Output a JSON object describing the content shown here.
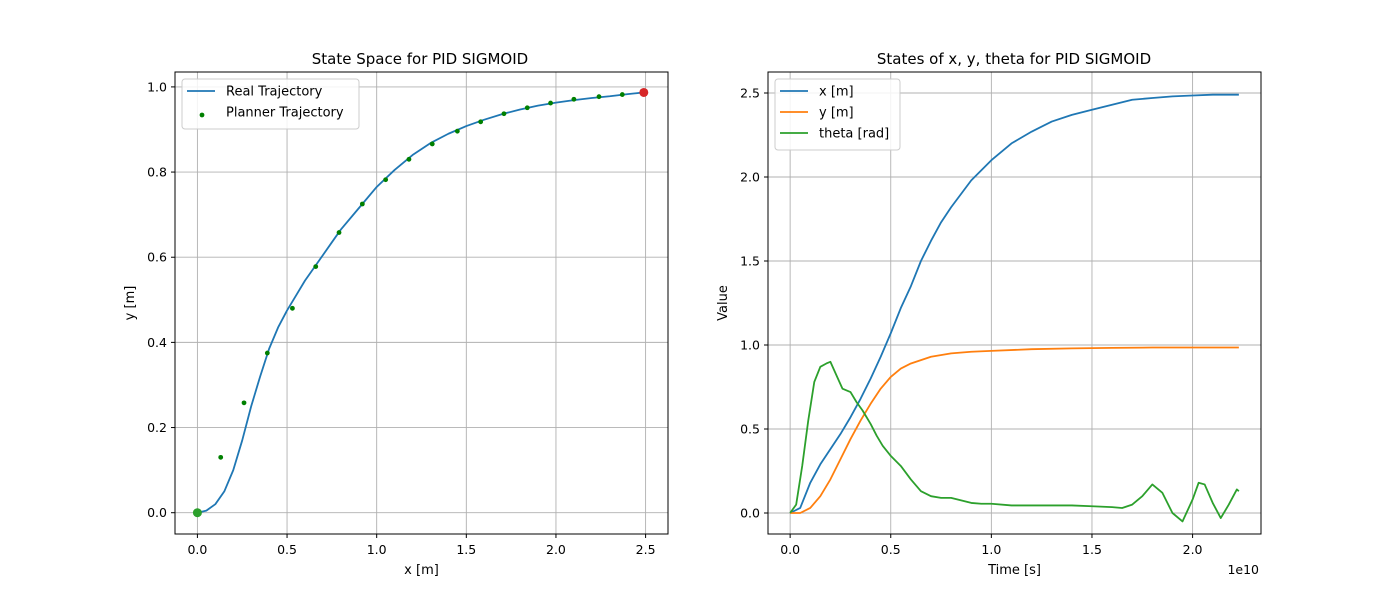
{
  "chart_data": [
    {
      "type": "line",
      "title": "State Space for PID SIGMOID",
      "xlabel": "x [m]",
      "ylabel": "y [m]",
      "xlim": [
        -0.125,
        2.625
      ],
      "ylim": [
        -0.05,
        1.035
      ],
      "xticks": [
        0.0,
        0.5,
        1.0,
        1.5,
        2.0,
        2.5
      ],
      "xtick_labels": [
        "0.0",
        "0.5",
        "1.0",
        "1.5",
        "2.0",
        "2.5"
      ],
      "yticks": [
        0.0,
        0.2,
        0.4,
        0.6,
        0.8,
        1.0
      ],
      "ytick_labels": [
        "0.0",
        "0.2",
        "0.4",
        "0.6",
        "0.8",
        "1.0"
      ],
      "grid": true,
      "legend": "top-left",
      "series": [
        {
          "name": "Real Trajectory",
          "kind": "line",
          "color": "#1f77b4",
          "x": [
            0,
            0.05,
            0.1,
            0.15,
            0.2,
            0.25,
            0.3,
            0.35,
            0.4,
            0.45,
            0.5,
            0.55,
            0.6,
            0.65,
            0.7,
            0.75,
            0.8,
            0.9,
            1.0,
            1.1,
            1.2,
            1.3,
            1.4,
            1.5,
            1.6,
            1.7,
            1.8,
            1.9,
            2.0,
            2.1,
            2.2,
            2.3,
            2.4,
            2.49
          ],
          "y": [
            0,
            0.005,
            0.02,
            0.05,
            0.1,
            0.17,
            0.25,
            0.32,
            0.385,
            0.435,
            0.475,
            0.51,
            0.545,
            0.575,
            0.605,
            0.635,
            0.665,
            0.715,
            0.765,
            0.805,
            0.84,
            0.868,
            0.89,
            0.908,
            0.923,
            0.936,
            0.947,
            0.956,
            0.963,
            0.969,
            0.974,
            0.978,
            0.983,
            0.987
          ]
        },
        {
          "name": "Planner Trajectory",
          "kind": "scatter",
          "color": "#008000",
          "x": [
            0,
            0.13,
            0.26,
            0.39,
            0.53,
            0.66,
            0.79,
            0.92,
            1.05,
            1.18,
            1.31,
            1.45,
            1.58,
            1.71,
            1.84,
            1.97,
            2.1,
            2.24,
            2.37,
            2.49
          ],
          "y": [
            0,
            0.13,
            0.258,
            0.375,
            0.48,
            0.578,
            0.658,
            0.725,
            0.782,
            0.83,
            0.866,
            0.896,
            0.918,
            0.937,
            0.951,
            0.962,
            0.971,
            0.977,
            0.982,
            0.987
          ]
        }
      ],
      "markers": [
        {
          "label": "start",
          "x": 0,
          "y": 0,
          "color": "#2ca02c"
        },
        {
          "label": "goal",
          "x": 2.49,
          "y": 0.987,
          "color": "#d62728"
        }
      ]
    },
    {
      "type": "line",
      "title": "States of x, y, theta for PID SIGMOID",
      "xlabel": "Time [s]",
      "ylabel": "Value",
      "x_offset_text": "1e10",
      "xlim": [
        -1.1,
        23.4
      ],
      "ylim": [
        -0.125,
        2.625
      ],
      "xticks": [
        0,
        5,
        10,
        15,
        20
      ],
      "xtick_labels": [
        "0.0",
        "0.5",
        "1.0",
        "1.5",
        "2.0"
      ],
      "yticks": [
        0.0,
        0.5,
        1.0,
        1.5,
        2.0,
        2.5
      ],
      "ytick_labels": [
        "0.0",
        "0.5",
        "1.0",
        "1.5",
        "2.0",
        "2.5"
      ],
      "grid": true,
      "legend": "top-left",
      "x_unit_note": "x values are in units of 1e9 s",
      "series": [
        {
          "name": "x [m]",
          "color": "#1f77b4",
          "x": [
            0,
            0.5,
            1,
            1.5,
            2,
            2.5,
            3,
            3.5,
            4,
            4.5,
            5,
            5.5,
            6,
            6.5,
            7,
            7.5,
            8,
            9,
            10,
            11,
            12,
            13,
            14,
            15,
            16,
            17,
            18,
            19,
            20,
            21,
            22,
            22.3
          ],
          "y": [
            0,
            0.03,
            0.18,
            0.29,
            0.38,
            0.47,
            0.57,
            0.68,
            0.8,
            0.93,
            1.07,
            1.22,
            1.35,
            1.5,
            1.62,
            1.73,
            1.82,
            1.98,
            2.1,
            2.2,
            2.27,
            2.33,
            2.37,
            2.4,
            2.43,
            2.46,
            2.47,
            2.48,
            2.485,
            2.49,
            2.49,
            2.49
          ]
        },
        {
          "name": "y [m]",
          "color": "#ff7f0e",
          "x": [
            0,
            0.5,
            1,
            1.5,
            2,
            2.5,
            3,
            3.5,
            4,
            4.5,
            5,
            5.5,
            6,
            6.5,
            7,
            8,
            9,
            10,
            12,
            14,
            16,
            18,
            20,
            22.3
          ],
          "y": [
            0,
            0.0,
            0.03,
            0.1,
            0.2,
            0.32,
            0.44,
            0.55,
            0.65,
            0.74,
            0.81,
            0.86,
            0.89,
            0.91,
            0.93,
            0.95,
            0.96,
            0.965,
            0.975,
            0.98,
            0.983,
            0.985,
            0.985,
            0.985
          ]
        },
        {
          "name": "theta [rad]",
          "color": "#2ca02c",
          "x": [
            0,
            0.3,
            0.6,
            0.9,
            1.2,
            1.5,
            1.8,
            2.0,
            2.3,
            2.6,
            3.0,
            3.3,
            3.6,
            4.0,
            4.3,
            4.6,
            5.0,
            5.5,
            6.0,
            6.5,
            7.0,
            7.5,
            8.0,
            8.5,
            9.0,
            9.5,
            10.0,
            11.0,
            12.0,
            13.0,
            14.0,
            15.0,
            16.0,
            16.5,
            17.0,
            17.5,
            18.0,
            18.5,
            19.0,
            19.5,
            20.0,
            20.3,
            20.6,
            21.0,
            21.4,
            21.8,
            22.2,
            22.3
          ],
          "y": [
            0,
            0.05,
            0.28,
            0.55,
            0.78,
            0.87,
            0.89,
            0.9,
            0.82,
            0.74,
            0.72,
            0.66,
            0.61,
            0.53,
            0.46,
            0.4,
            0.34,
            0.28,
            0.2,
            0.13,
            0.1,
            0.09,
            0.09,
            0.075,
            0.06,
            0.055,
            0.055,
            0.045,
            0.045,
            0.045,
            0.045,
            0.04,
            0.035,
            0.03,
            0.05,
            0.1,
            0.17,
            0.12,
            0.0,
            -0.05,
            0.08,
            0.18,
            0.17,
            0.06,
            -0.03,
            0.05,
            0.14,
            0.13
          ]
        }
      ]
    }
  ]
}
